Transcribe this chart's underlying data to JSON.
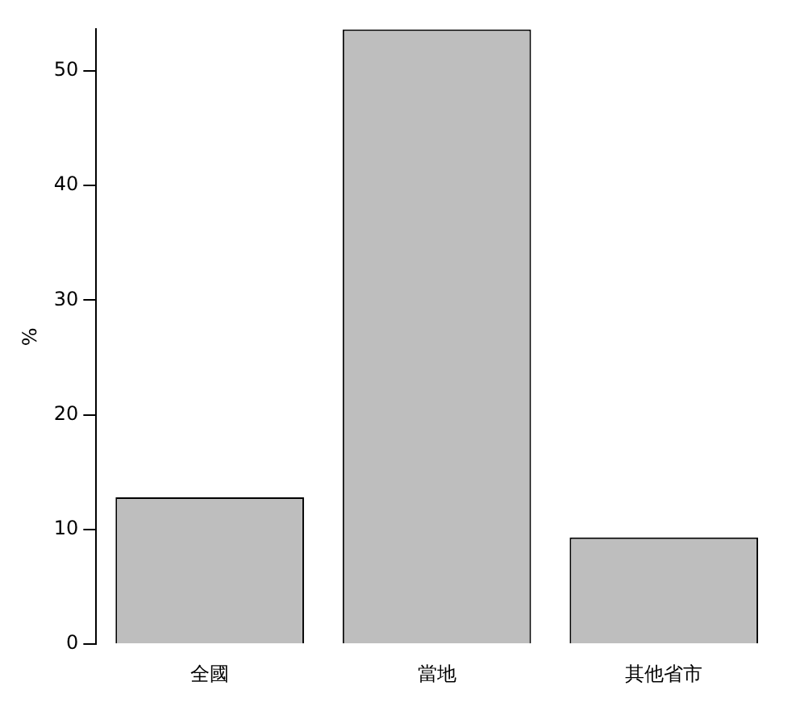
{
  "chart_data": {
    "type": "bar",
    "ylabel": "%",
    "categories": [
      "全國",
      "當地",
      "其他省市"
    ],
    "values": [
      12.8,
      53.6,
      9.3
    ],
    "color": "#bebebe",
    "ylim": [
      0,
      53.6
    ],
    "yticks": [
      0,
      10,
      20,
      30,
      40,
      50
    ],
    "grid": false,
    "legend": false
  }
}
